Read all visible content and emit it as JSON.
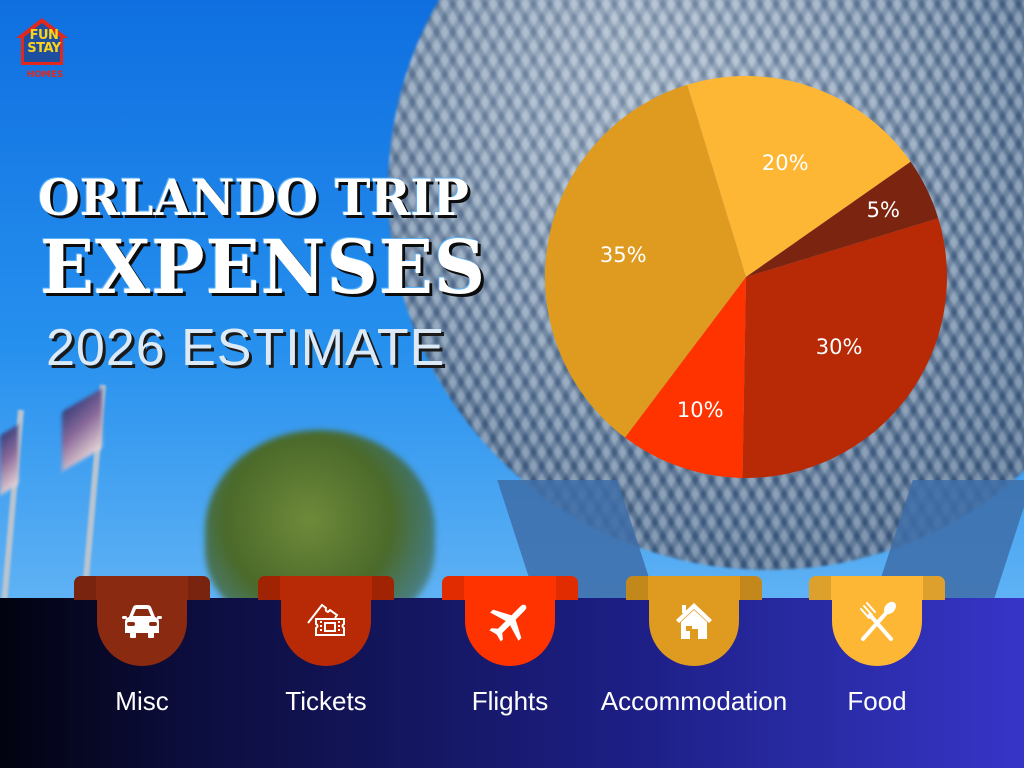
{
  "brand": {
    "logo_line1": "FUN",
    "logo_line2": "STAY",
    "logo_line3": "HOMES",
    "colors": {
      "house_outline": "#e0281c",
      "house_fill": "#1d4ea0",
      "text": "#fdd21a"
    }
  },
  "header": {
    "title_line1": "ORLANDO TRIP",
    "title_line2": "EXPENSES",
    "subtitle": "2026 ESTIMATE"
  },
  "chart_data": {
    "type": "pie",
    "title": "Orlando Trip Expenses — 2026 Estimate",
    "categories": [
      "Food",
      "Misc",
      "Tickets",
      "Flights",
      "Accommodation"
    ],
    "values": [
      20,
      5,
      30,
      10,
      35
    ],
    "labels": [
      "20%",
      "5%",
      "30%",
      "10%",
      "35%"
    ],
    "colors": [
      "#FDB734",
      "#7B2410",
      "#B72A05",
      "#FF3300",
      "#DE9B20"
    ],
    "start_angle_deg": -17,
    "direction": "clockwise",
    "legend_position": "bottom",
    "legend_order": [
      "Misc",
      "Tickets",
      "Flights",
      "Accommodation",
      "Food"
    ]
  },
  "legend": {
    "items": [
      {
        "label": "Misc",
        "icon": "car-icon",
        "color": "#8A2A10"
      },
      {
        "label": "Tickets",
        "icon": "ticket-icon",
        "color": "#B72A05"
      },
      {
        "label": "Flights",
        "icon": "airplane-icon",
        "color": "#FF3300"
      },
      {
        "label": "Accommodation",
        "icon": "house-icon",
        "color": "#DE9B20"
      },
      {
        "label": "Food",
        "icon": "fork-spoon-icon",
        "color": "#FDB734"
      }
    ]
  }
}
